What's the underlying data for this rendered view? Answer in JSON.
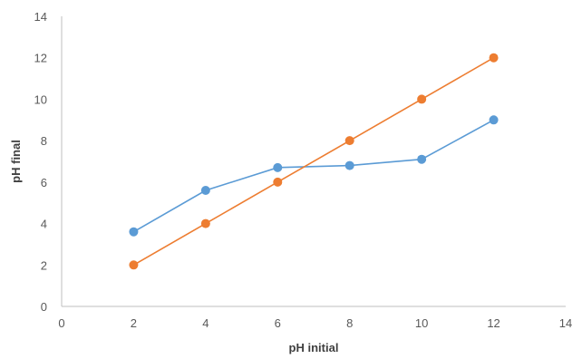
{
  "chart_data": {
    "type": "scatter",
    "xlabel": "pH initial",
    "ylabel": "pH final",
    "xlim": [
      0,
      14
    ],
    "ylim": [
      0,
      14
    ],
    "xticks": [
      0,
      2,
      4,
      6,
      8,
      10,
      12,
      14
    ],
    "yticks": [
      0,
      2,
      4,
      6,
      8,
      10,
      12,
      14
    ],
    "grid": false,
    "lines_connected": true,
    "series": [
      {
        "color": "#5B9BD5",
        "x": [
          2,
          4,
          6,
          8,
          10,
          12
        ],
        "y": [
          3.6,
          5.6,
          6.7,
          6.8,
          7.1,
          9.0
        ]
      },
      {
        "color": "#ED7D31",
        "x": [
          2,
          4,
          6,
          8,
          10,
          12
        ],
        "y": [
          2,
          4,
          6,
          8,
          10,
          12
        ]
      }
    ]
  }
}
